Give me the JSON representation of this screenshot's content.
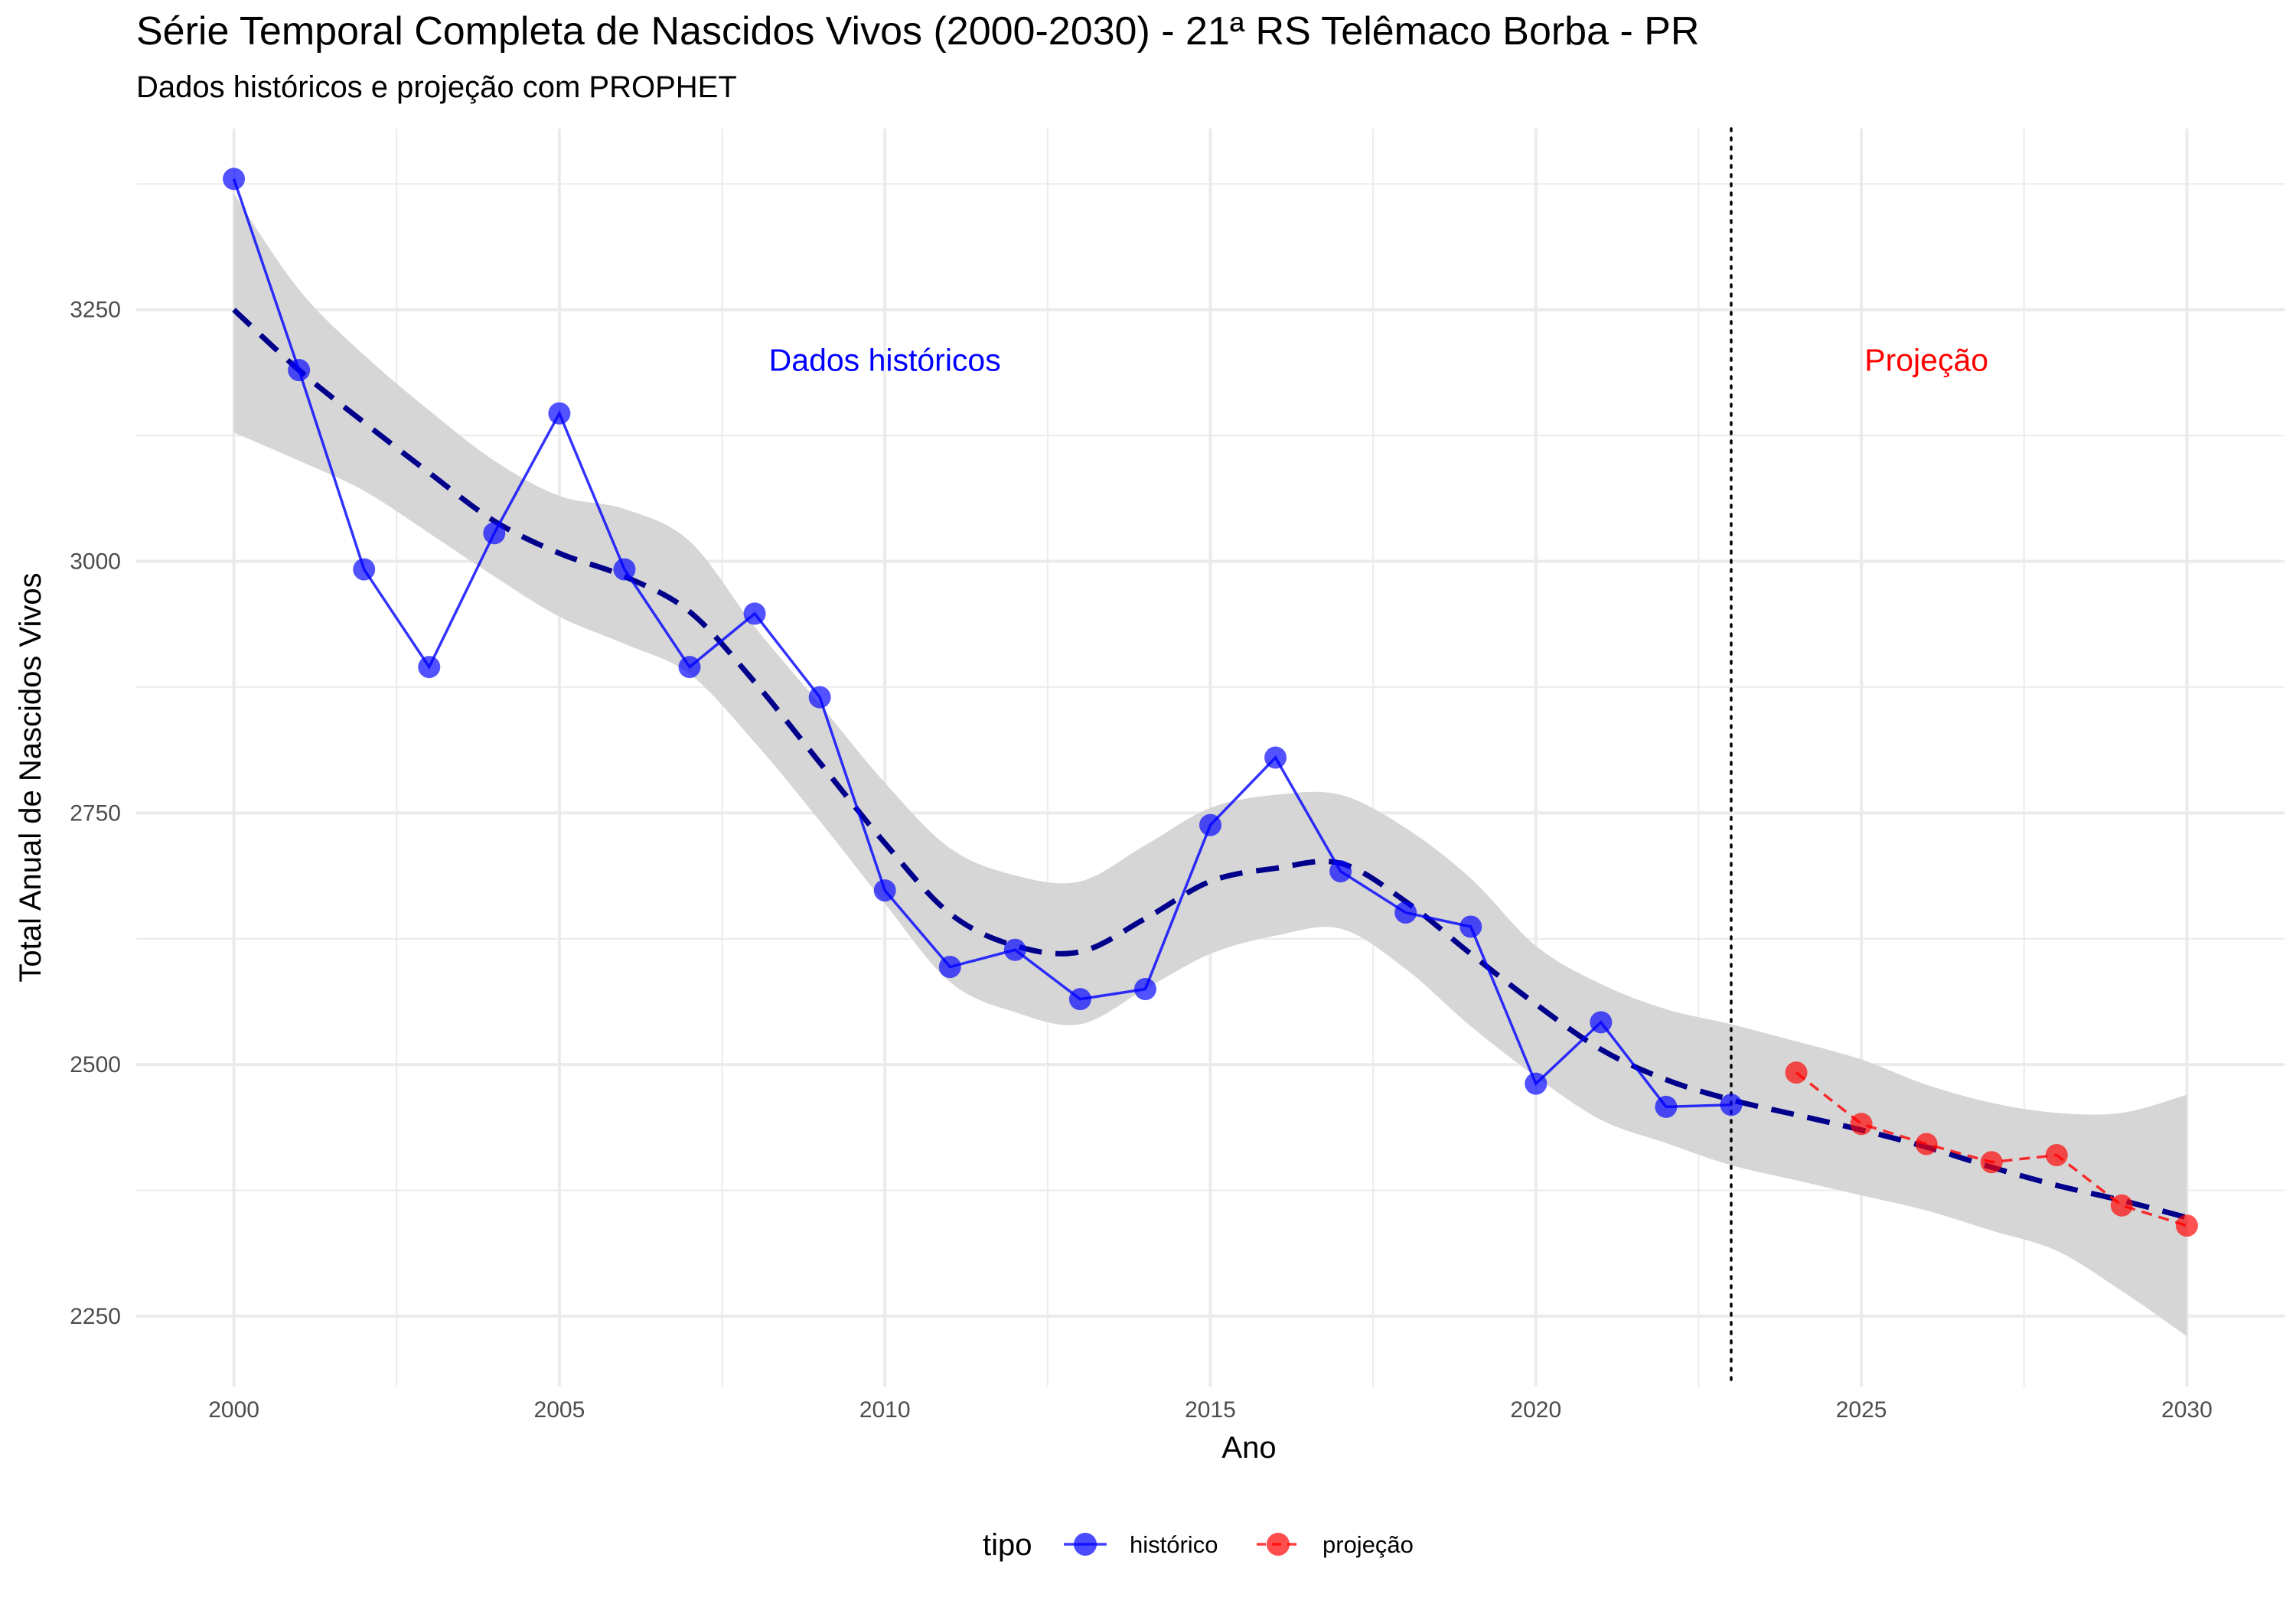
{
  "chart_data": {
    "type": "line",
    "title": "Série Temporal Completa de Nascidos Vivos (2000-2030) -  21ª RS Telêmaco Borba - PR",
    "subtitle": "Dados históricos e projeção com PROPHET",
    "xlabel": "Ano",
    "ylabel": "Total Anual de Nascidos Vivos",
    "xlim": [
      1998.5,
      2031.5
    ],
    "ylim": [
      2180,
      3430
    ],
    "x_ticks": [
      2000,
      2005,
      2010,
      2015,
      2020,
      2025,
      2030
    ],
    "y_ticks": [
      2250,
      2500,
      2750,
      3000,
      3250
    ],
    "forecast_start": 2023,
    "series": [
      {
        "name": "histórico",
        "color": "#0000ff",
        "x": [
          2000,
          2001,
          2002,
          2003,
          2004,
          2005,
          2006,
          2007,
          2008,
          2009,
          2010,
          2011,
          2012,
          2013,
          2014,
          2015,
          2016,
          2017,
          2018,
          2019,
          2020,
          2021,
          2022,
          2023
        ],
        "values": [
          3380,
          3190,
          2992,
          2895,
          3028,
          3147,
          2992,
          2895,
          2948,
          2865,
          2673,
          2597,
          2614,
          2565,
          2575,
          2738,
          2805,
          2692,
          2651,
          2637,
          2481,
          2542,
          2458,
          2460
        ]
      },
      {
        "name": "projeção",
        "color": "#ff0000",
        "x": [
          2024,
          2025,
          2026,
          2027,
          2028,
          2029,
          2030
        ],
        "values": [
          2492,
          2441,
          2421,
          2403,
          2410,
          2360,
          2340
        ]
      }
    ],
    "trend": {
      "color": "#00008b",
      "x": [
        2000,
        2001,
        2002,
        2003,
        2004,
        2005,
        2006,
        2007,
        2008,
        2009,
        2010,
        2011,
        2012,
        2013,
        2014,
        2015,
        2016,
        2017,
        2018,
        2019,
        2020,
        2021,
        2022,
        2023,
        2024,
        2025,
        2026,
        2027,
        2028,
        2029,
        2030
      ],
      "values": [
        3250,
        3190,
        3138,
        3088,
        3040,
        3008,
        2985,
        2950,
        2880,
        2800,
        2720,
        2650,
        2618,
        2612,
        2645,
        2682,
        2695,
        2700,
        2662,
        2610,
        2560,
        2515,
        2485,
        2465,
        2450,
        2435,
        2418,
        2398,
        2380,
        2365,
        2348
      ]
    },
    "confidence_band": {
      "color": "#d6d6d6",
      "x": [
        2000,
        2001,
        2002,
        2003,
        2004,
        2005,
        2006,
        2007,
        2008,
        2009,
        2010,
        2011,
        2012,
        2013,
        2014,
        2015,
        2016,
        2017,
        2018,
        2019,
        2020,
        2021,
        2022,
        2023,
        2024,
        2025,
        2026,
        2027,
        2028,
        2029,
        2030
      ],
      "upper": [
        3365,
        3270,
        3205,
        3150,
        3100,
        3065,
        3052,
        3020,
        2935,
        2858,
        2780,
        2715,
        2688,
        2682,
        2718,
        2755,
        2768,
        2768,
        2735,
        2685,
        2618,
        2580,
        2555,
        2540,
        2523,
        2505,
        2480,
        2462,
        2452,
        2452,
        2470
      ],
      "lower": [
        3128,
        3100,
        3070,
        3028,
        2985,
        2945,
        2918,
        2888,
        2820,
        2742,
        2660,
        2582,
        2552,
        2540,
        2575,
        2610,
        2628,
        2635,
        2595,
        2538,
        2488,
        2445,
        2422,
        2400,
        2385,
        2370,
        2355,
        2335,
        2315,
        2275,
        2230
      ]
    },
    "annotations": [
      {
        "text": "Dados históricos",
        "x": 2010,
        "y": 3200,
        "color": "#0000ff"
      },
      {
        "text": "Projeção",
        "x": 2026,
        "y": 3200,
        "color": "#ff0000"
      }
    ],
    "legend": {
      "title": "tipo",
      "position": "bottom",
      "items": [
        {
          "label": "histórico",
          "color": "#0000ff"
        },
        {
          "label": "projeção",
          "color": "#ff0000"
        }
      ]
    }
  }
}
